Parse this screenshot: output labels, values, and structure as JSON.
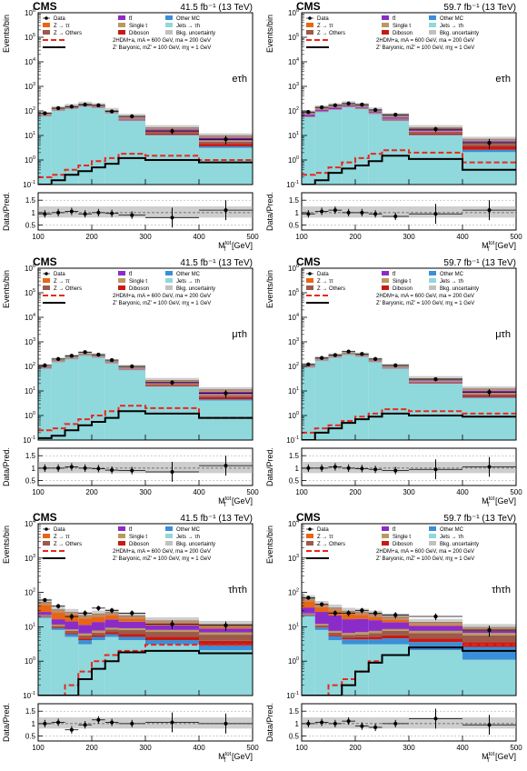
{
  "legend": {
    "entries": [
      {
        "id": "data",
        "label": "Data",
        "kind": "marker"
      },
      {
        "id": "ttbar",
        "label": "tt̄",
        "kind": "fill",
        "color": "#8b2cc9"
      },
      {
        "id": "othermc",
        "label": "Other MC",
        "kind": "fill",
        "color": "#3a8fd8"
      },
      {
        "id": "ztautau",
        "label": "Z → ττ",
        "kind": "fill",
        "color": "#e86612"
      },
      {
        "id": "singlet",
        "label": "Single t",
        "kind": "fill",
        "color": "#b99a5e"
      },
      {
        "id": "jetstau",
        "label": "Jets → τh",
        "kind": "fill",
        "color": "#8fd8dc"
      },
      {
        "id": "zothers",
        "label": "Z → Others",
        "kind": "fill",
        "color": "#9c5a4a"
      },
      {
        "id": "diboson",
        "label": "Diboson",
        "kind": "fill",
        "color": "#c81a12"
      },
      {
        "id": "bkgunc",
        "label": "Bkg. uncertainty",
        "kind": "unc",
        "color": "#a6a6a6"
      },
      {
        "id": "sig2hdm",
        "label": "2HDM+a, mA = 600 GeV, ma = 200 GeV",
        "kind": "dashed",
        "color": "#e8281c"
      },
      {
        "id": "sigzp",
        "label": "Z' Baryonic, mZ' = 100 GeV, mχ = 1 GeV",
        "kind": "solid",
        "color": "#000000"
      }
    ]
  },
  "chart_data": [
    {
      "type": "bar",
      "id": "etau_2017",
      "experiment": "CMS",
      "lumi": "41.5 fb⁻¹ (13 TeV)",
      "channel": "eτh",
      "ylabel": "Events/bin",
      "ratio_ylabel": "Data/Pred.",
      "xlabel": "MTtot [GeV]",
      "bins": [
        100,
        125,
        150,
        175,
        200,
        225,
        250,
        300,
        400,
        500
      ],
      "ylim": [
        0.1,
        1000000
      ],
      "ratio_ylim": [
        0.3,
        1.8
      ],
      "xlim": [
        100,
        500
      ],
      "stack": {
        "jetstau": [
          60,
          100,
          120,
          150,
          130,
          80,
          40,
          10,
          3
        ],
        "zothers": [
          1,
          2,
          3,
          4,
          4,
          3,
          3,
          2,
          1
        ],
        "diboson": [
          0.5,
          1,
          1.5,
          2,
          2,
          2,
          2,
          1.5,
          1
        ],
        "singlet": [
          1,
          1.5,
          2,
          2,
          2,
          2,
          1.5,
          1,
          0.7
        ],
        "ttbar": [
          3,
          5,
          7,
          8,
          8,
          6,
          5,
          3,
          2
        ],
        "ztautau": [
          8,
          15,
          20,
          25,
          20,
          12,
          8,
          3,
          1.5
        ],
        "othermc": [
          0.5,
          1,
          1,
          1,
          1,
          1,
          1,
          0.5,
          0.5
        ]
      },
      "data": [
        80,
        130,
        150,
        180,
        170,
        95,
        60,
        15,
        7
      ],
      "ratio": [
        0.95,
        1.0,
        1.05,
        0.95,
        1.0,
        0.97,
        0.9,
        0.8,
        1.1
      ],
      "sig2hdm": [
        0.2,
        0.25,
        0.4,
        0.6,
        0.9,
        1.2,
        1.8,
        1.5,
        1.0
      ],
      "sigzp": [
        0.1,
        0.15,
        0.25,
        0.35,
        0.5,
        0.7,
        1.2,
        1.0,
        0.8
      ]
    },
    {
      "type": "bar",
      "id": "etau_2018",
      "experiment": "CMS",
      "lumi": "59.7 fb⁻¹ (13 TeV)",
      "channel": "eτh",
      "ylabel": "Events/bin",
      "ratio_ylabel": "Data/Pred.",
      "xlabel": "MTtot [GeV]",
      "bins": [
        100,
        125,
        150,
        175,
        200,
        225,
        250,
        300,
        400,
        500
      ],
      "ylim": [
        0.1,
        1000000
      ],
      "ratio_ylim": [
        0.3,
        1.8
      ],
      "xlim": [
        100,
        500
      ],
      "stack": {
        "jetstau": [
          55,
          90,
          110,
          140,
          120,
          75,
          40,
          10,
          2
        ],
        "zothers": [
          2,
          3,
          4,
          5,
          5,
          4,
          3,
          2,
          1
        ],
        "diboson": [
          0.5,
          1,
          1.5,
          2,
          2,
          2,
          2,
          1.5,
          1
        ],
        "singlet": [
          1,
          2,
          2,
          2,
          2,
          2,
          1.5,
          1,
          0.5
        ],
        "ttbar": [
          15,
          20,
          25,
          25,
          20,
          15,
          10,
          3,
          1
        ],
        "ztautau": [
          10,
          18,
          22,
          25,
          20,
          12,
          8,
          3,
          1
        ],
        "othermc": [
          0.5,
          1,
          1,
          1,
          1,
          1,
          1,
          0.5,
          0.5
        ]
      },
      "data": [
        90,
        140,
        170,
        200,
        180,
        110,
        70,
        18,
        5
      ],
      "ratio": [
        0.95,
        1.05,
        1.1,
        1.0,
        1.0,
        0.95,
        0.85,
        0.95,
        1.1
      ],
      "sig2hdm": [
        0.25,
        0.3,
        0.5,
        0.8,
        1.2,
        1.8,
        2.5,
        2.0,
        0.8
      ],
      "sigzp": [
        0.1,
        0.15,
        0.3,
        0.45,
        0.6,
        0.9,
        1.5,
        1.1,
        0.4
      ]
    },
    {
      "type": "bar",
      "id": "mutau_2017",
      "experiment": "CMS",
      "lumi": "41.5 fb⁻¹ (13 TeV)",
      "channel": "μτh",
      "ylabel": "Events/bin",
      "ratio_ylabel": "Data/Pred.",
      "xlabel": "MTtot [GeV]",
      "bins": [
        100,
        125,
        150,
        175,
        200,
        225,
        250,
        300,
        400,
        500
      ],
      "ylim": [
        0.1,
        1000000
      ],
      "ratio_ylim": [
        0.3,
        1.8
      ],
      "xlim": [
        100,
        500
      ],
      "stack": {
        "jetstau": [
          80,
          150,
          200,
          280,
          230,
          130,
          70,
          15,
          4
        ],
        "zothers": [
          2,
          3,
          4,
          5,
          5,
          4,
          3,
          2,
          1
        ],
        "diboson": [
          0.5,
          1,
          1.5,
          2,
          2,
          2,
          2,
          1.5,
          1
        ],
        "singlet": [
          1,
          2,
          2,
          2,
          2,
          2,
          1.5,
          1,
          0.7
        ],
        "ttbar": [
          4,
          6,
          8,
          9,
          8,
          6,
          5,
          3,
          2
        ],
        "ztautau": [
          10,
          18,
          25,
          30,
          25,
          15,
          10,
          4,
          2
        ],
        "othermc": [
          0.5,
          1,
          1,
          1,
          1,
          1,
          1,
          0.5,
          0.5
        ]
      },
      "data": [
        110,
        200,
        270,
        380,
        300,
        180,
        100,
        22,
        8
      ],
      "ratio": [
        1.0,
        1.0,
        1.05,
        1.0,
        0.98,
        0.92,
        0.9,
        0.85,
        1.1
      ],
      "sig2hdm": [
        0.25,
        0.3,
        0.45,
        0.7,
        1.0,
        1.5,
        2.5,
        2.0,
        0.8
      ],
      "sigzp": [
        0.12,
        0.15,
        0.25,
        0.4,
        0.55,
        0.8,
        1.5,
        1.2,
        0.8
      ]
    },
    {
      "type": "bar",
      "id": "mutau_2018",
      "experiment": "CMS",
      "lumi": "59.7 fb⁻¹ (13 TeV)",
      "channel": "μτh",
      "ylabel": "Events/bin",
      "ratio_ylabel": "Data/Pred.",
      "xlabel": "MTtot [GeV]",
      "bins": [
        100,
        125,
        150,
        175,
        200,
        225,
        250,
        300,
        400,
        500
      ],
      "ylim": [
        0.1,
        1000000
      ],
      "ratio_ylim": [
        0.3,
        1.8
      ],
      "xlim": [
        100,
        500
      ],
      "stack": {
        "jetstau": [
          90,
          170,
          230,
          300,
          250,
          150,
          80,
          20,
          5
        ],
        "zothers": [
          2,
          3,
          4,
          5,
          5,
          4,
          3,
          2,
          1
        ],
        "diboson": [
          0.5,
          1,
          1.5,
          2,
          2,
          2,
          2,
          1.5,
          1
        ],
        "singlet": [
          1,
          2,
          2,
          2,
          2,
          2,
          1.5,
          1,
          0.7
        ],
        "ttbar": [
          5,
          8,
          10,
          10,
          9,
          7,
          5,
          3,
          2
        ],
        "ztautau": [
          12,
          20,
          28,
          32,
          26,
          16,
          10,
          4,
          2
        ],
        "othermc": [
          0.5,
          1,
          1,
          1,
          1,
          1,
          1,
          0.5,
          0.5
        ]
      },
      "data": [
        120,
        220,
        290,
        400,
        320,
        200,
        110,
        30,
        9
      ],
      "ratio": [
        1.0,
        1.0,
        1.05,
        1.0,
        0.98,
        0.95,
        0.9,
        0.95,
        1.05
      ],
      "sig2hdm": [
        0.2,
        0.3,
        0.4,
        0.6,
        0.9,
        1.2,
        1.8,
        1.5,
        1.2
      ],
      "sigzp": [
        0.1,
        0.2,
        0.3,
        0.5,
        0.7,
        0.9,
        1.2,
        1.0,
        0.9
      ]
    },
    {
      "type": "bar",
      "id": "tautau_2017",
      "experiment": "CMS",
      "lumi": "41.5 fb⁻¹ (13 TeV)",
      "channel": "τhτh",
      "ylabel": "Events/bin",
      "ratio_ylabel": "Data/Pred.",
      "xlabel": "MTtot [GeV]",
      "bins": [
        100,
        125,
        150,
        175,
        200,
        225,
        250,
        300,
        400,
        500
      ],
      "ylim": [
        0.1,
        10000
      ],
      "ratio_ylim": [
        0.3,
        1.8
      ],
      "xlim": [
        100,
        500
      ],
      "stack": {
        "jetstau": [
          18,
          8,
          5,
          3,
          4,
          5,
          4,
          3,
          2
        ],
        "othermc": [
          1,
          1,
          1,
          1,
          1,
          1,
          1,
          1,
          0.8
        ],
        "diboson": [
          0.5,
          0.5,
          0.5,
          0.5,
          0.7,
          0.8,
          1,
          1,
          1
        ],
        "zothers": [
          1.5,
          1,
          1,
          1,
          1,
          1.5,
          2,
          2,
          2
        ],
        "singlet": [
          1,
          1,
          0.8,
          0.8,
          1,
          1,
          1,
          1,
          1
        ],
        "ttbar": [
          5,
          5,
          6,
          5,
          6,
          7,
          5,
          3,
          2
        ],
        "ztautau": [
          25,
          15,
          12,
          10,
          10,
          10,
          7,
          4,
          3
        ]
      },
      "data": [
        60,
        40,
        20,
        25,
        35,
        30,
        25,
        12,
        11
      ],
      "ratio": [
        1.0,
        1.05,
        0.75,
        0.95,
        1.15,
        1.05,
        1.0,
        1.05,
        1.0
      ],
      "sig2hdm": [
        0,
        0,
        0.2,
        0.5,
        1.0,
        1.5,
        2.0,
        3.0,
        3.0
      ],
      "sigzp": [
        0,
        0,
        0.1,
        0.3,
        0.6,
        1.0,
        1.8,
        2.0,
        1.7
      ]
    },
    {
      "type": "bar",
      "id": "tautau_2018",
      "experiment": "CMS",
      "lumi": "59.7 fb⁻¹ (13 TeV)",
      "channel": "τhτh",
      "ylabel": "Events/bin",
      "ratio_ylabel": "Data/Pred.",
      "xlabel": "MTtot [GeV]",
      "bins": [
        100,
        125,
        150,
        175,
        200,
        225,
        250,
        300,
        400,
        500
      ],
      "ylim": [
        0.1,
        10000
      ],
      "ratio_ylim": [
        0.3,
        1.8
      ],
      "xlim": [
        100,
        500
      ],
      "stack": {
        "jetstau": [
          20,
          8,
          4,
          3,
          3,
          3,
          3,
          2,
          1
        ],
        "othermc": [
          1.5,
          1.5,
          1.2,
          1.2,
          1.2,
          1.2,
          1.5,
          1.5,
          1.5
        ],
        "diboson": [
          0.5,
          0.5,
          0.5,
          0.5,
          0.7,
          0.8,
          1,
          1,
          1
        ],
        "zothers": [
          1.5,
          1,
          1,
          1,
          1,
          1.5,
          2,
          2,
          2
        ],
        "singlet": [
          1,
          1,
          0.8,
          0.8,
          1,
          1,
          1,
          1,
          1
        ],
        "ttbar": [
          12,
          15,
          14,
          10,
          10,
          8,
          5,
          3,
          1
        ],
        "ztautau": [
          30,
          18,
          14,
          12,
          10,
          8,
          6,
          3,
          2
        ]
      },
      "data": [
        70,
        45,
        25,
        25,
        30,
        25,
        22,
        20,
        8
      ],
      "ratio": [
        1.0,
        1.05,
        1.0,
        1.1,
        0.9,
        0.85,
        1.0,
        1.2,
        0.95
      ],
      "sig2hdm": [
        0,
        0,
        0.2,
        0.3,
        0.5,
        1.0,
        1.5,
        2.5,
        3.0
      ],
      "sigzp": [
        0,
        0,
        0.1,
        0.2,
        0.5,
        0.9,
        1.5,
        2.5,
        2.0
      ]
    }
  ]
}
